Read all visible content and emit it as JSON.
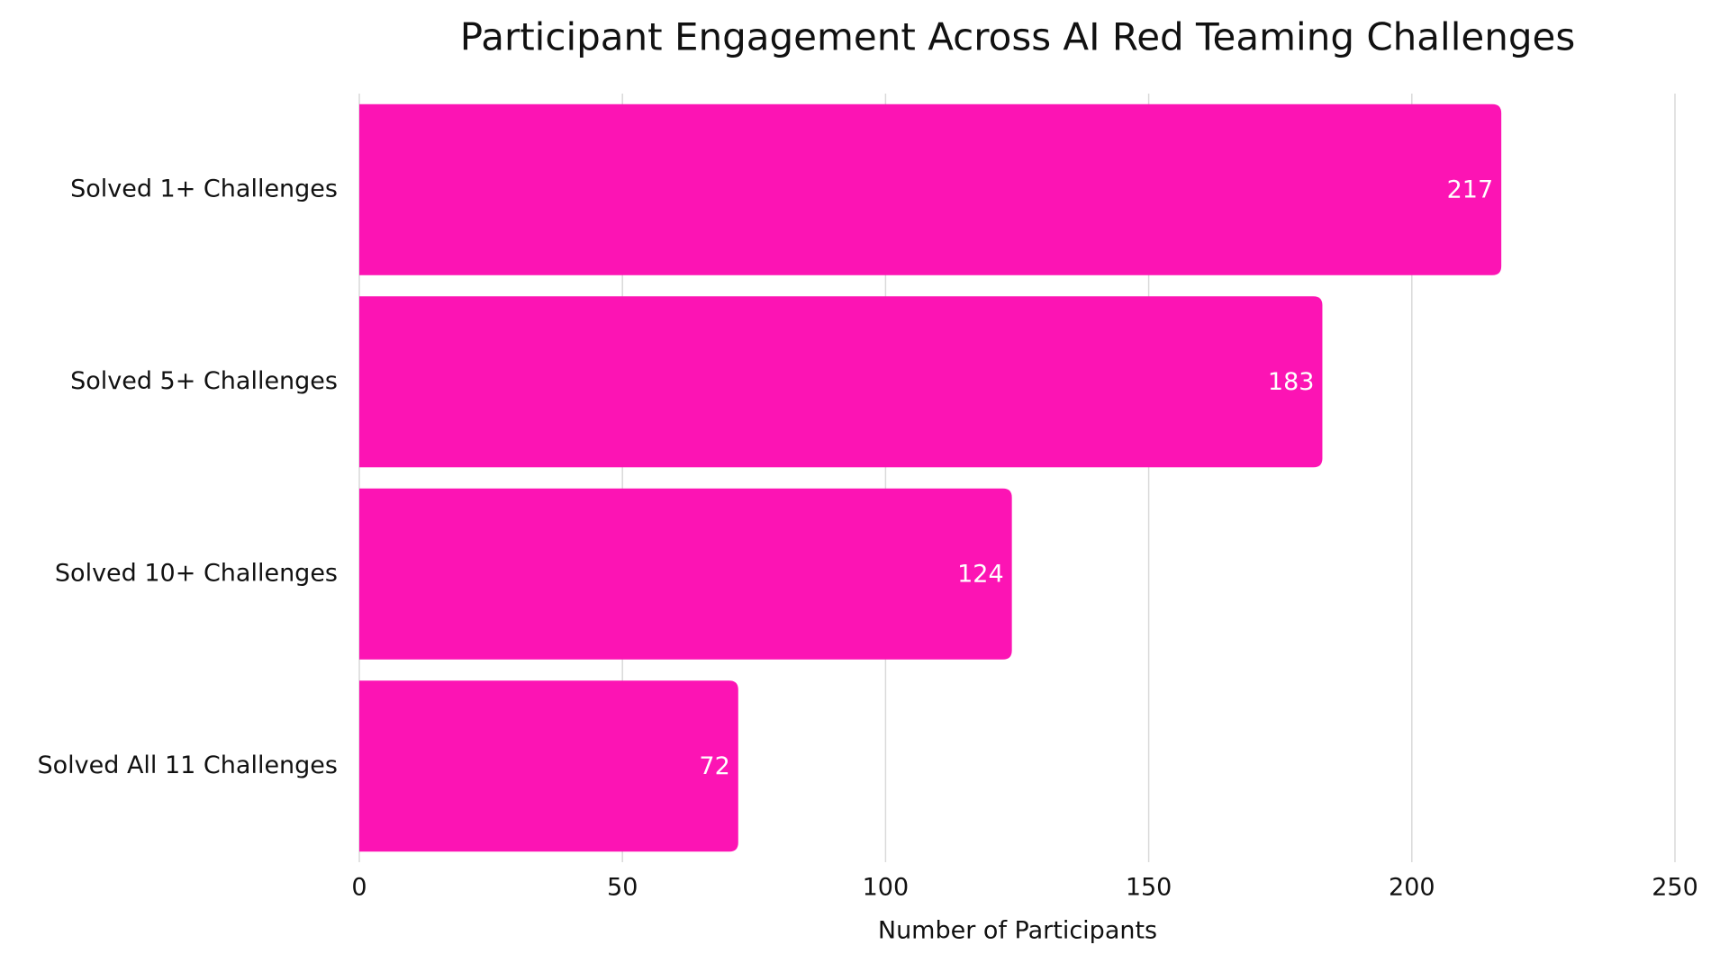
{
  "chart_data": {
    "type": "hbar",
    "title": "Participant Engagement Across AI Red Teaming Challenges",
    "categories": [
      "Solved 1+ Challenges",
      "Solved 5+ Challenges",
      "Solved 10+ Challenges",
      "Solved All 11 Challenges"
    ],
    "values": [
      217,
      183,
      124,
      72
    ],
    "color": "#fc14b4",
    "xlabel": "Number of Participants",
    "xlim": [
      0,
      250
    ],
    "xticks": [
      0,
      50,
      100,
      150,
      200,
      250
    ],
    "grid": true
  }
}
